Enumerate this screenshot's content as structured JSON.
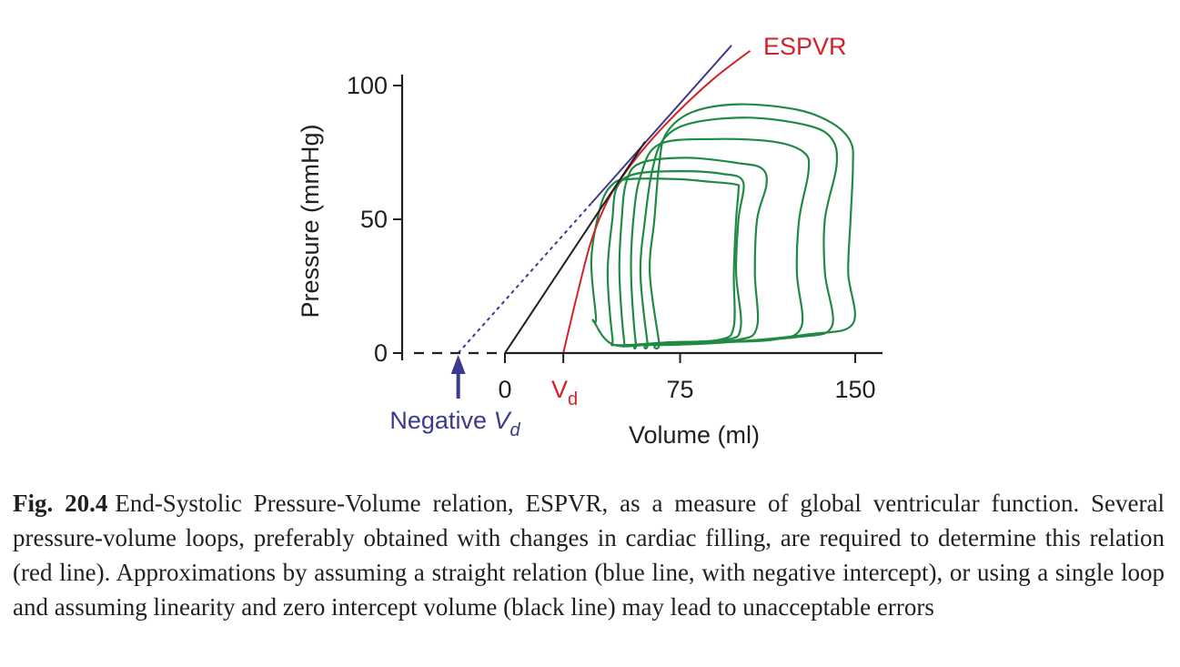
{
  "chart_data": {
    "type": "line",
    "xlabel": "Volume (ml)",
    "ylabel": "Pressure (mmHg)",
    "xlim": [
      -60,
      215
    ],
    "ylim": [
      0,
      100
    ],
    "x_ticks": [
      {
        "value": 0,
        "label": "0"
      },
      {
        "value": 75,
        "label": "75"
      },
      {
        "value": 150,
        "label": "150"
      }
    ],
    "y_ticks": [
      {
        "value": 0,
        "label": "0"
      },
      {
        "value": 50,
        "label": "50"
      },
      {
        "value": 100,
        "label": "100"
      }
    ],
    "grid": false,
    "colors": {
      "espvr": "#d2232a",
      "linear": "#3c3a8e",
      "zero_intercept": "#231f20",
      "loops": "#1f8a43",
      "axis": "#231f20"
    },
    "annotations": {
      "espvr_label": "ESPVR",
      "vd_main": "V",
      "vd_sub": "d",
      "negative_vd_prefix": "Negative ",
      "negative_vd_var": "V",
      "negative_vd_sub": "d"
    },
    "series": [
      {
        "role": "espvr",
        "points": [
          [
            25,
            0
          ],
          [
            31,
            22
          ],
          [
            37,
            42
          ],
          [
            44,
            57
          ],
          [
            52,
            68
          ],
          [
            62,
            79
          ],
          [
            75,
            91
          ],
          [
            90,
            103
          ],
          [
            105,
            113
          ]
        ]
      },
      {
        "role": "linear",
        "points": [
          [
            37,
            56
          ],
          [
            97,
            115
          ]
        ]
      },
      {
        "role": "linear-extrapolation",
        "points": [
          [
            -20,
            0
          ],
          [
            37,
            56
          ]
        ]
      },
      {
        "role": "zero-intercept",
        "points": [
          [
            0,
            0
          ],
          [
            60,
            79
          ]
        ]
      },
      {
        "role": "loop",
        "points": [
          [
            39,
            13
          ],
          [
            37,
            35
          ],
          [
            41,
            55
          ],
          [
            46,
            63
          ],
          [
            53,
            65
          ],
          [
            74,
            65
          ],
          [
            88,
            64
          ],
          [
            99,
            63
          ],
          [
            100,
            61
          ],
          [
            99,
            50
          ],
          [
            98,
            30
          ],
          [
            98,
            10
          ],
          [
            92,
            5
          ],
          [
            70,
            4
          ],
          [
            47,
            3
          ],
          [
            38,
            12
          ]
        ]
      },
      {
        "role": "loop",
        "points": [
          [
            46,
            6
          ],
          [
            44,
            30
          ],
          [
            46,
            50
          ],
          [
            48,
            62
          ],
          [
            56,
            67
          ],
          [
            76,
            68
          ],
          [
            93,
            67
          ],
          [
            102,
            64
          ],
          [
            100,
            50
          ],
          [
            99,
            30
          ],
          [
            101,
            10
          ],
          [
            95,
            5
          ],
          [
            70,
            4
          ],
          [
            48,
            3
          ]
        ]
      },
      {
        "role": "loop",
        "points": [
          [
            51,
            5
          ],
          [
            49,
            30
          ],
          [
            50,
            50
          ],
          [
            52,
            64
          ],
          [
            58,
            71
          ],
          [
            78,
            73
          ],
          [
            100,
            71
          ],
          [
            110,
            69
          ],
          [
            112,
            63
          ],
          [
            108,
            50
          ],
          [
            107,
            30
          ],
          [
            108,
            10
          ],
          [
            100,
            5
          ],
          [
            75,
            4
          ],
          [
            53,
            3
          ]
        ]
      },
      {
        "role": "loop",
        "points": [
          [
            56,
            4
          ],
          [
            54,
            30
          ],
          [
            55,
            50
          ],
          [
            58,
            66
          ],
          [
            66,
            78
          ],
          [
            90,
            80
          ],
          [
            115,
            79
          ],
          [
            128,
            75
          ],
          [
            130,
            68
          ],
          [
            126,
            50
          ],
          [
            125,
            30
          ],
          [
            127,
            10
          ],
          [
            115,
            5
          ],
          [
            85,
            4
          ],
          [
            58,
            3
          ]
        ]
      },
      {
        "role": "loop",
        "points": [
          [
            61,
            4
          ],
          [
            58,
            30
          ],
          [
            60,
            50
          ],
          [
            63,
            68
          ],
          [
            68,
            80
          ],
          [
            80,
            86
          ],
          [
            105,
            88
          ],
          [
            130,
            85
          ],
          [
            140,
            80
          ],
          [
            142,
            70
          ],
          [
            137,
            50
          ],
          [
            137,
            30
          ],
          [
            140,
            10
          ],
          [
            125,
            6
          ],
          [
            90,
            4
          ],
          [
            62,
            3
          ]
        ]
      },
      {
        "role": "loop",
        "points": [
          [
            66,
            4
          ],
          [
            62,
            30
          ],
          [
            64,
            50
          ],
          [
            66,
            70
          ],
          [
            69,
            82
          ],
          [
            80,
            90
          ],
          [
            100,
            93
          ],
          [
            125,
            91
          ],
          [
            140,
            86
          ],
          [
            148,
            79
          ],
          [
            149,
            70
          ],
          [
            148,
            50
          ],
          [
            147,
            30
          ],
          [
            149,
            11
          ],
          [
            130,
            7
          ],
          [
            95,
            4
          ],
          [
            66,
            3
          ]
        ]
      }
    ]
  },
  "caption": {
    "label": "Fig. 20.4",
    "text": "End-Systolic Pressure-Volume relation, ESPVR, as a measure of global ventricular function. Several pressure-volume loops, preferably obtained with changes in cardiac filling, are required to determine this relation (red line). Approximations by assuming a straight relation (blue line, with negative intercept), or using a single loop and assuming linearity and zero intercept volume (black line) may lead to unacceptable errors"
  }
}
